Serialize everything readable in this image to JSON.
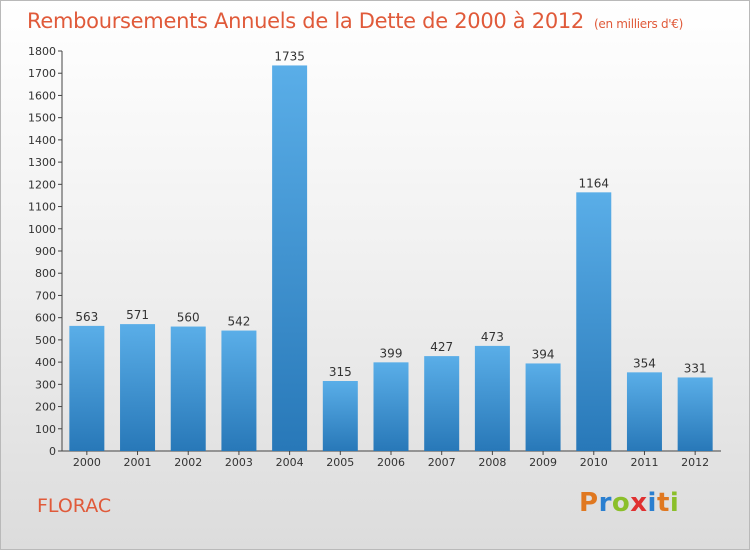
{
  "header": {
    "title": "Remboursements Annuels de la Dette de 2000 à 2012",
    "unit": "(en milliers d'€)"
  },
  "footer": {
    "town": "FLORAC",
    "logo": "Proxiti"
  },
  "colors": {
    "title": "#e05a3a",
    "bar_light": "#5aaee8",
    "bar_dark": "#2878b8",
    "logo": [
      "#e07820",
      "#2a7fd0",
      "#8bbf2a",
      "#e03030",
      "#2a7fd0",
      "#e07820",
      "#8bbf2a"
    ]
  },
  "chart_data": {
    "type": "bar",
    "categories": [
      "2000",
      "2001",
      "2002",
      "2003",
      "2004",
      "2005",
      "2006",
      "2007",
      "2008",
      "2009",
      "2010",
      "2011",
      "2012"
    ],
    "values": [
      563,
      571,
      560,
      542,
      1735,
      315,
      399,
      427,
      473,
      394,
      1164,
      354,
      331
    ],
    "title": "Remboursements Annuels de la Dette de 2000 à 2012",
    "xlabel": "",
    "ylabel": "",
    "ylim": [
      0,
      1800
    ],
    "yticks": [
      0,
      100,
      200,
      300,
      400,
      500,
      600,
      700,
      800,
      900,
      1000,
      1100,
      1200,
      1300,
      1400,
      1500,
      1600,
      1700,
      1800
    ],
    "grid": false,
    "legend": "none"
  }
}
